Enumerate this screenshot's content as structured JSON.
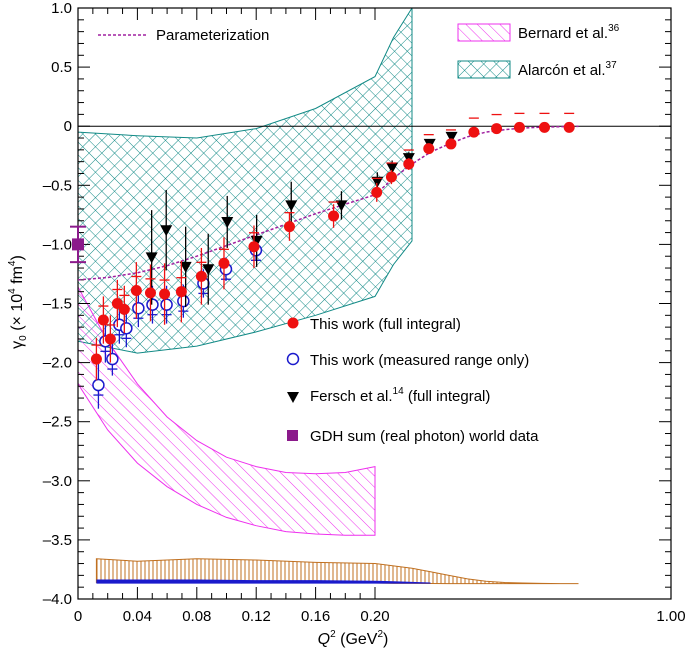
{
  "chart_data": {
    "type": "scatter",
    "title": "",
    "xlabel": "Q",
    "xlabel_sup": "2",
    "xlabel_unit": "(GeV",
    "xlabel_unit_sup": "2",
    "xlabel_close": ")",
    "ylabel": "γ",
    "ylabel_sub": "0",
    "ylabel_unit": "(× 10",
    "ylabel_unit_sup": "4",
    "ylabel_unit_rest": "fm",
    "ylabel_unit_sup2": "4",
    "ylabel_close": ")",
    "xlim": [
      0,
      1.0
    ],
    "ylim": [
      -4.0,
      1.0
    ],
    "x_tick_values": [
      0,
      0.04,
      0.08,
      0.12,
      0.16,
      0.2,
      1.0
    ],
    "x_tick_labels": [
      "0",
      "0.04",
      "0.08",
      "0.12",
      "0.16",
      "0.20",
      "1.00"
    ],
    "x_scale_note": "non-linear axis: 0–0.20 occupies the left half, 0.20–1.00 the right half",
    "y_tick_values": [
      1.0,
      0.5,
      0,
      -0.5,
      -1.0,
      -1.5,
      -2.0,
      -2.5,
      -3.0,
      -3.5,
      -4.0
    ],
    "y_tick_labels": [
      "1.0",
      "0.5",
      "0",
      "–0.5",
      "–1.0",
      "–1.5",
      "–2.0",
      "–2.5",
      "–3.0",
      "–3.5",
      "–4.0"
    ],
    "legend": {
      "parameterization": "Parameterization",
      "bernard": "Bernard et al.",
      "bernard_ref": "36",
      "alarcon": "Alarcón et al.",
      "alarcon_ref": "37",
      "full": "This work (full integral)",
      "measured": "This work (measured range only)",
      "fersch": "Fersch et al.",
      "fersch_ref": "14",
      "fersch_suffix": "(full integral)",
      "gdh": "GDH sum (real photon) world data"
    },
    "colors": {
      "full": "#ee1111",
      "measured": "#1a1acc",
      "fersch": "#000000",
      "gdh": "#8b1a8b",
      "param": "#a020a0",
      "bernard": "#ee30ee",
      "alarcon": "#128a86",
      "systematic": "#c07020",
      "systematic_inner": "#1a1acc"
    },
    "series": [
      {
        "name": "This work (full integral)",
        "x": [
          0.0124,
          0.0171,
          0.0218,
          0.0265,
          0.0312,
          0.0393,
          0.0488,
          0.0583,
          0.0696,
          0.0831,
          0.0983,
          0.1185,
          0.1424,
          0.1721,
          0.2047,
          0.2444,
          0.2913,
          0.3453,
          0.4053,
          0.4672,
          0.5286,
          0.5904,
          0.6581,
          0.7248
        ],
        "y": [
          -1.97,
          -1.64,
          -1.8,
          -1.5,
          -1.55,
          -1.39,
          -1.41,
          -1.42,
          -1.4,
          -1.27,
          -1.16,
          -1.02,
          -0.85,
          -0.76,
          -0.56,
          -0.43,
          -0.32,
          -0.19,
          -0.15,
          -0.05,
          -0.02,
          -0.01,
          -0.01,
          -0.01
        ],
        "err": [
          0.18,
          0.2,
          0.2,
          0.2,
          0.2,
          0.24,
          0.24,
          0.26,
          0.26,
          0.24,
          0.22,
          0.18,
          0.12,
          0.1,
          0.08,
          0.06,
          0.05,
          0.04,
          0.03,
          0.03,
          0.02,
          0.02,
          0.02,
          0.02
        ]
      },
      {
        "name": "This work (measured range only)",
        "x": [
          0.0124,
          0.0171,
          0.0218,
          0.0265,
          0.0312,
          0.0393,
          0.0488,
          0.0583,
          0.0696,
          0.0831,
          0.0983,
          0.1185
        ],
        "y": [
          -2.19,
          -1.82,
          -1.97,
          -1.68,
          -1.71,
          -1.54,
          -1.51,
          -1.51,
          -1.48,
          -1.33,
          -1.21,
          -1.05
        ],
        "err": [
          0.2,
          0.18,
          0.14,
          0.16,
          0.16,
          0.16,
          0.16,
          0.16,
          0.14,
          0.12,
          0.1,
          0.08
        ]
      },
      {
        "name": "Fersch et al. (full integral)",
        "x": [
          0.0496,
          0.0594,
          0.0725,
          0.0877,
          0.1005,
          0.1203,
          0.1436,
          0.1774,
          0.2063,
          0.2463,
          0.2915,
          0.3479,
          0.4069
        ],
        "y": [
          -1.11,
          -0.88,
          -1.19,
          -1.21,
          -0.81,
          -0.97,
          -0.67,
          -0.67,
          -0.47,
          -0.35,
          -0.27,
          -0.15,
          -0.09
        ],
        "err": [
          0.4,
          0.34,
          0.34,
          0.3,
          0.22,
          0.22,
          0.2,
          0.12,
          0.08,
          0.06,
          0.05,
          0.03,
          0.02
        ]
      },
      {
        "name": "GDH sum (real photon) world data",
        "x": [
          0
        ],
        "y": [
          -1.0
        ],
        "err": [
          0.15
        ]
      }
    ],
    "parameterization": {
      "x": [
        0.0,
        0.02,
        0.04,
        0.06,
        0.08,
        0.1,
        0.12,
        0.14,
        0.16,
        0.18,
        0.2,
        0.25,
        0.3,
        0.35,
        0.4,
        0.45,
        0.5,
        0.55,
        0.6,
        0.65,
        0.7,
        0.75
      ],
      "y": [
        -1.3,
        -1.28,
        -1.24,
        -1.18,
        -1.1,
        -1.01,
        -0.92,
        -0.83,
        -0.74,
        -0.66,
        -0.58,
        -0.44,
        -0.32,
        -0.22,
        -0.15,
        -0.09,
        -0.05,
        -0.03,
        -0.015,
        -0.008,
        -0.004,
        -0.002
      ]
    },
    "bernard_band": {
      "x": [
        0.0,
        0.02,
        0.04,
        0.06,
        0.08,
        0.1,
        0.12,
        0.14,
        0.16,
        0.18,
        0.2
      ],
      "upper": [
        -1.36,
        -1.82,
        -2.18,
        -2.46,
        -2.66,
        -2.8,
        -2.88,
        -2.93,
        -2.94,
        -2.93,
        -2.88
      ],
      "lower": [
        -2.18,
        -2.57,
        -2.85,
        -3.05,
        -3.2,
        -3.31,
        -3.38,
        -3.43,
        -3.45,
        -3.46,
        -3.46
      ]
    },
    "alarcon_band": {
      "x": [
        0.0,
        0.04,
        0.08,
        0.12,
        0.16,
        0.2,
        0.25,
        0.3
      ],
      "upper": [
        -0.05,
        -0.08,
        -0.1,
        -0.02,
        0.15,
        0.42,
        0.75,
        1.0
      ],
      "lower": [
        -1.82,
        -1.92,
        -1.86,
        -1.74,
        -1.6,
        -1.44,
        -1.17,
        -0.97
      ]
    },
    "systematic_band": {
      "x": [
        0.0124,
        0.04,
        0.08,
        0.12,
        0.16,
        0.2,
        0.25,
        0.3,
        0.35,
        0.4,
        0.45,
        0.5,
        0.55,
        0.6,
        0.65,
        0.7,
        0.75
      ],
      "upper": [
        -3.66,
        -3.68,
        -3.66,
        -3.67,
        -3.69,
        -3.7,
        -3.72,
        -3.74,
        -3.77,
        -3.8,
        -3.83,
        -3.85,
        -3.86,
        -3.865,
        -3.868,
        -3.87,
        -3.87
      ],
      "lower": [
        -3.86,
        -3.86,
        -3.86,
        -3.86,
        -3.865,
        -3.865,
        -3.868,
        -3.868,
        -3.869,
        -3.87,
        -3.87,
        -3.87,
        -3.87,
        -3.87,
        -3.87,
        -3.87,
        -3.87
      ]
    },
    "systematic_inner_band": {
      "x": [
        0.0124,
        0.04,
        0.08,
        0.12,
        0.16,
        0.2,
        0.25,
        0.3,
        0.35
      ],
      "upper": [
        -3.835,
        -3.835,
        -3.835,
        -3.84,
        -3.84,
        -3.845,
        -3.85,
        -3.855,
        -3.86
      ],
      "lower": [
        -3.87,
        -3.87,
        -3.87,
        -3.87,
        -3.87,
        -3.87,
        -3.87,
        -3.87,
        -3.87
      ]
    }
  }
}
